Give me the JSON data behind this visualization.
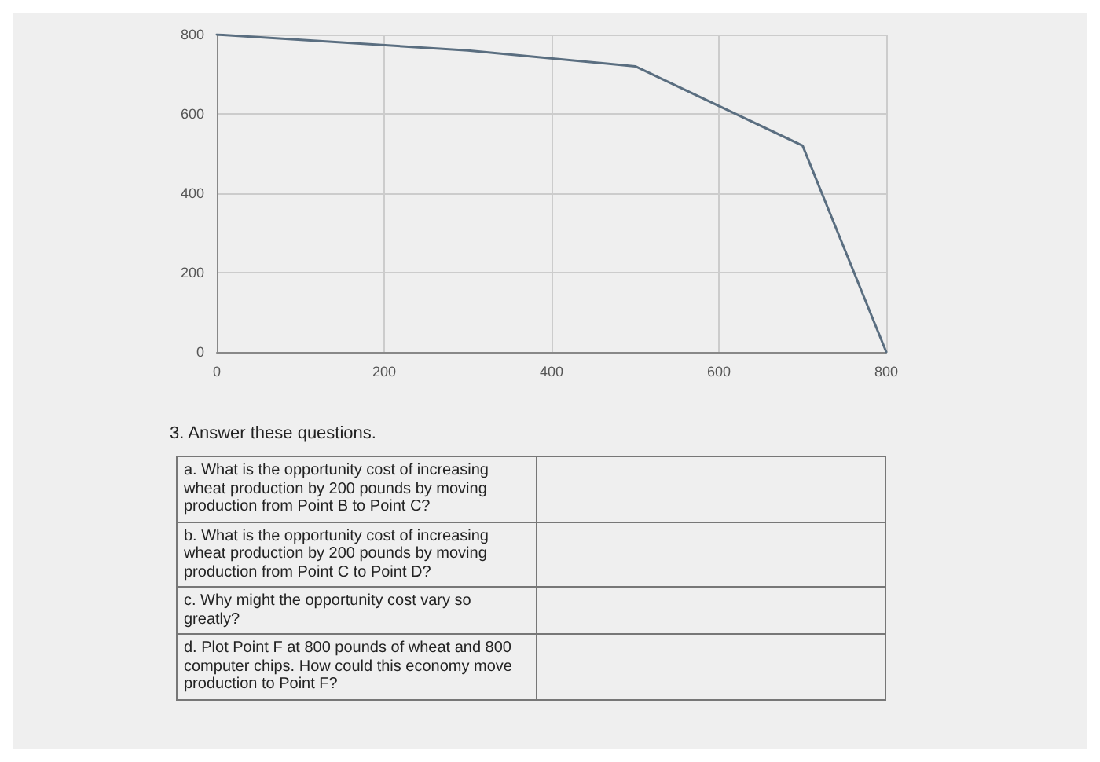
{
  "chart_data": {
    "type": "line",
    "x": [
      0,
      300,
      500,
      700,
      800
    ],
    "series": [
      {
        "color": "#5a6e80",
        "values": [
          800,
          760,
          720,
          520,
          0
        ]
      }
    ],
    "xlim": [
      0,
      800
    ],
    "xticks": [
      0,
      200,
      400,
      600,
      800
    ],
    "ylim": [
      0,
      800
    ],
    "yticks": [
      0,
      200,
      400,
      600,
      800
    ],
    "grid": true,
    "marker": "none",
    "line_style": "solid",
    "annotations": [
      "3. Answer these questions.",
      "a. What is the opportunity cost of increasing wheat production by 200 pounds by moving production from Point B to Point C?",
      "b. What is the opportunity cost of increasing wheat production by 200 pounds by moving production from Point C to Point D?",
      "c. Why might the opportunity cost vary so greatly?",
      "d. Plot Point F at 800 pounds of wheat and 800 computer chips. How could this economy move production to Point F?"
    ]
  }
}
